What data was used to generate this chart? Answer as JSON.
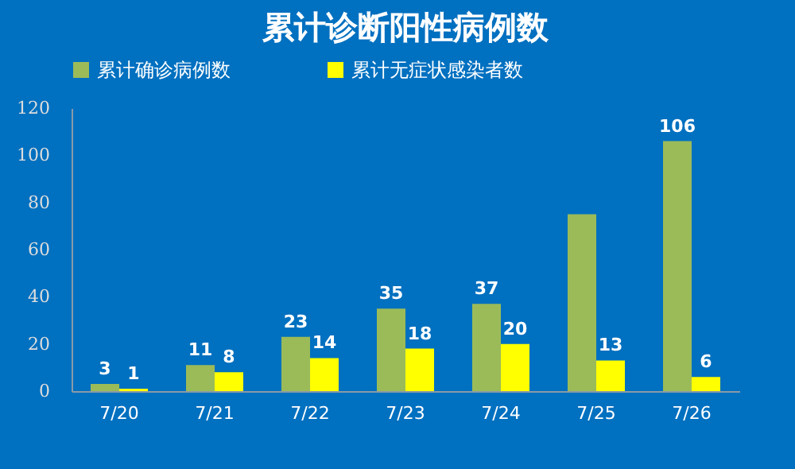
{
  "chart_data": {
    "type": "bar",
    "title": "累计诊断阳性病例数",
    "categories": [
      "7/20",
      "7/21",
      "7/22",
      "7/23",
      "7/24",
      "7/25",
      "7/26"
    ],
    "series": [
      {
        "name": "累计确诊病例数",
        "color": "#9bbb59",
        "values": [
          3,
          11,
          23,
          35,
          37,
          75,
          106
        ],
        "value_labels": [
          "3",
          "11",
          "23",
          "35",
          "37",
          null,
          "106"
        ]
      },
      {
        "name": "累计无症状感染者数",
        "color": "#ffff00",
        "values": [
          1,
          8,
          14,
          18,
          20,
          13,
          6
        ],
        "value_labels": [
          "1",
          "8",
          "14",
          "18",
          "20",
          "13",
          "6"
        ]
      }
    ],
    "ylim": [
      0,
      120
    ],
    "yticks": [
      0,
      20,
      40,
      60,
      80,
      100,
      120
    ],
    "grid": false,
    "legend": "top"
  }
}
